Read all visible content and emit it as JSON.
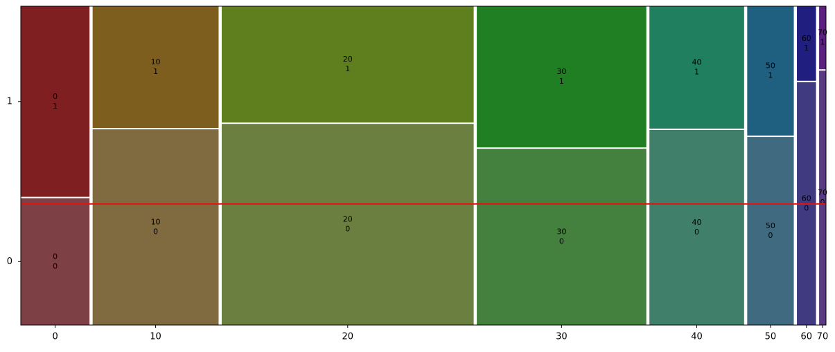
{
  "chart_data": {
    "type": "mosaic",
    "categories": [
      "0",
      "10",
      "20",
      "30",
      "40",
      "50",
      "60",
      "70"
    ],
    "widths": [
      0.09,
      0.165,
      0.33,
      0.222,
      0.124,
      0.061,
      0.025,
      0.009
    ],
    "ylim": [
      0,
      1
    ],
    "series": [
      {
        "name": "0",
        "values": [
          0.4,
          0.616,
          0.633,
          0.555,
          0.614,
          0.592,
          0.764,
          0.8
        ],
        "colors": [
          "#7d4044",
          "#806b40",
          "#6b8040",
          "#44803e",
          "#40806b",
          "#406a80",
          "#403a80",
          "#583b80"
        ]
      },
      {
        "name": "1",
        "values": [
          0.6,
          0.384,
          0.367,
          0.445,
          0.386,
          0.408,
          0.236,
          0.2
        ],
        "colors": [
          "#7f1f22",
          "#7d5e1e",
          "#5f7f1f",
          "#207f22",
          "#1f7f5f",
          "#1f5f7f",
          "#201f7f",
          "#5a1f7f"
        ]
      }
    ],
    "reference_line": {
      "value": 0.38,
      "color": "#e0150f"
    }
  }
}
